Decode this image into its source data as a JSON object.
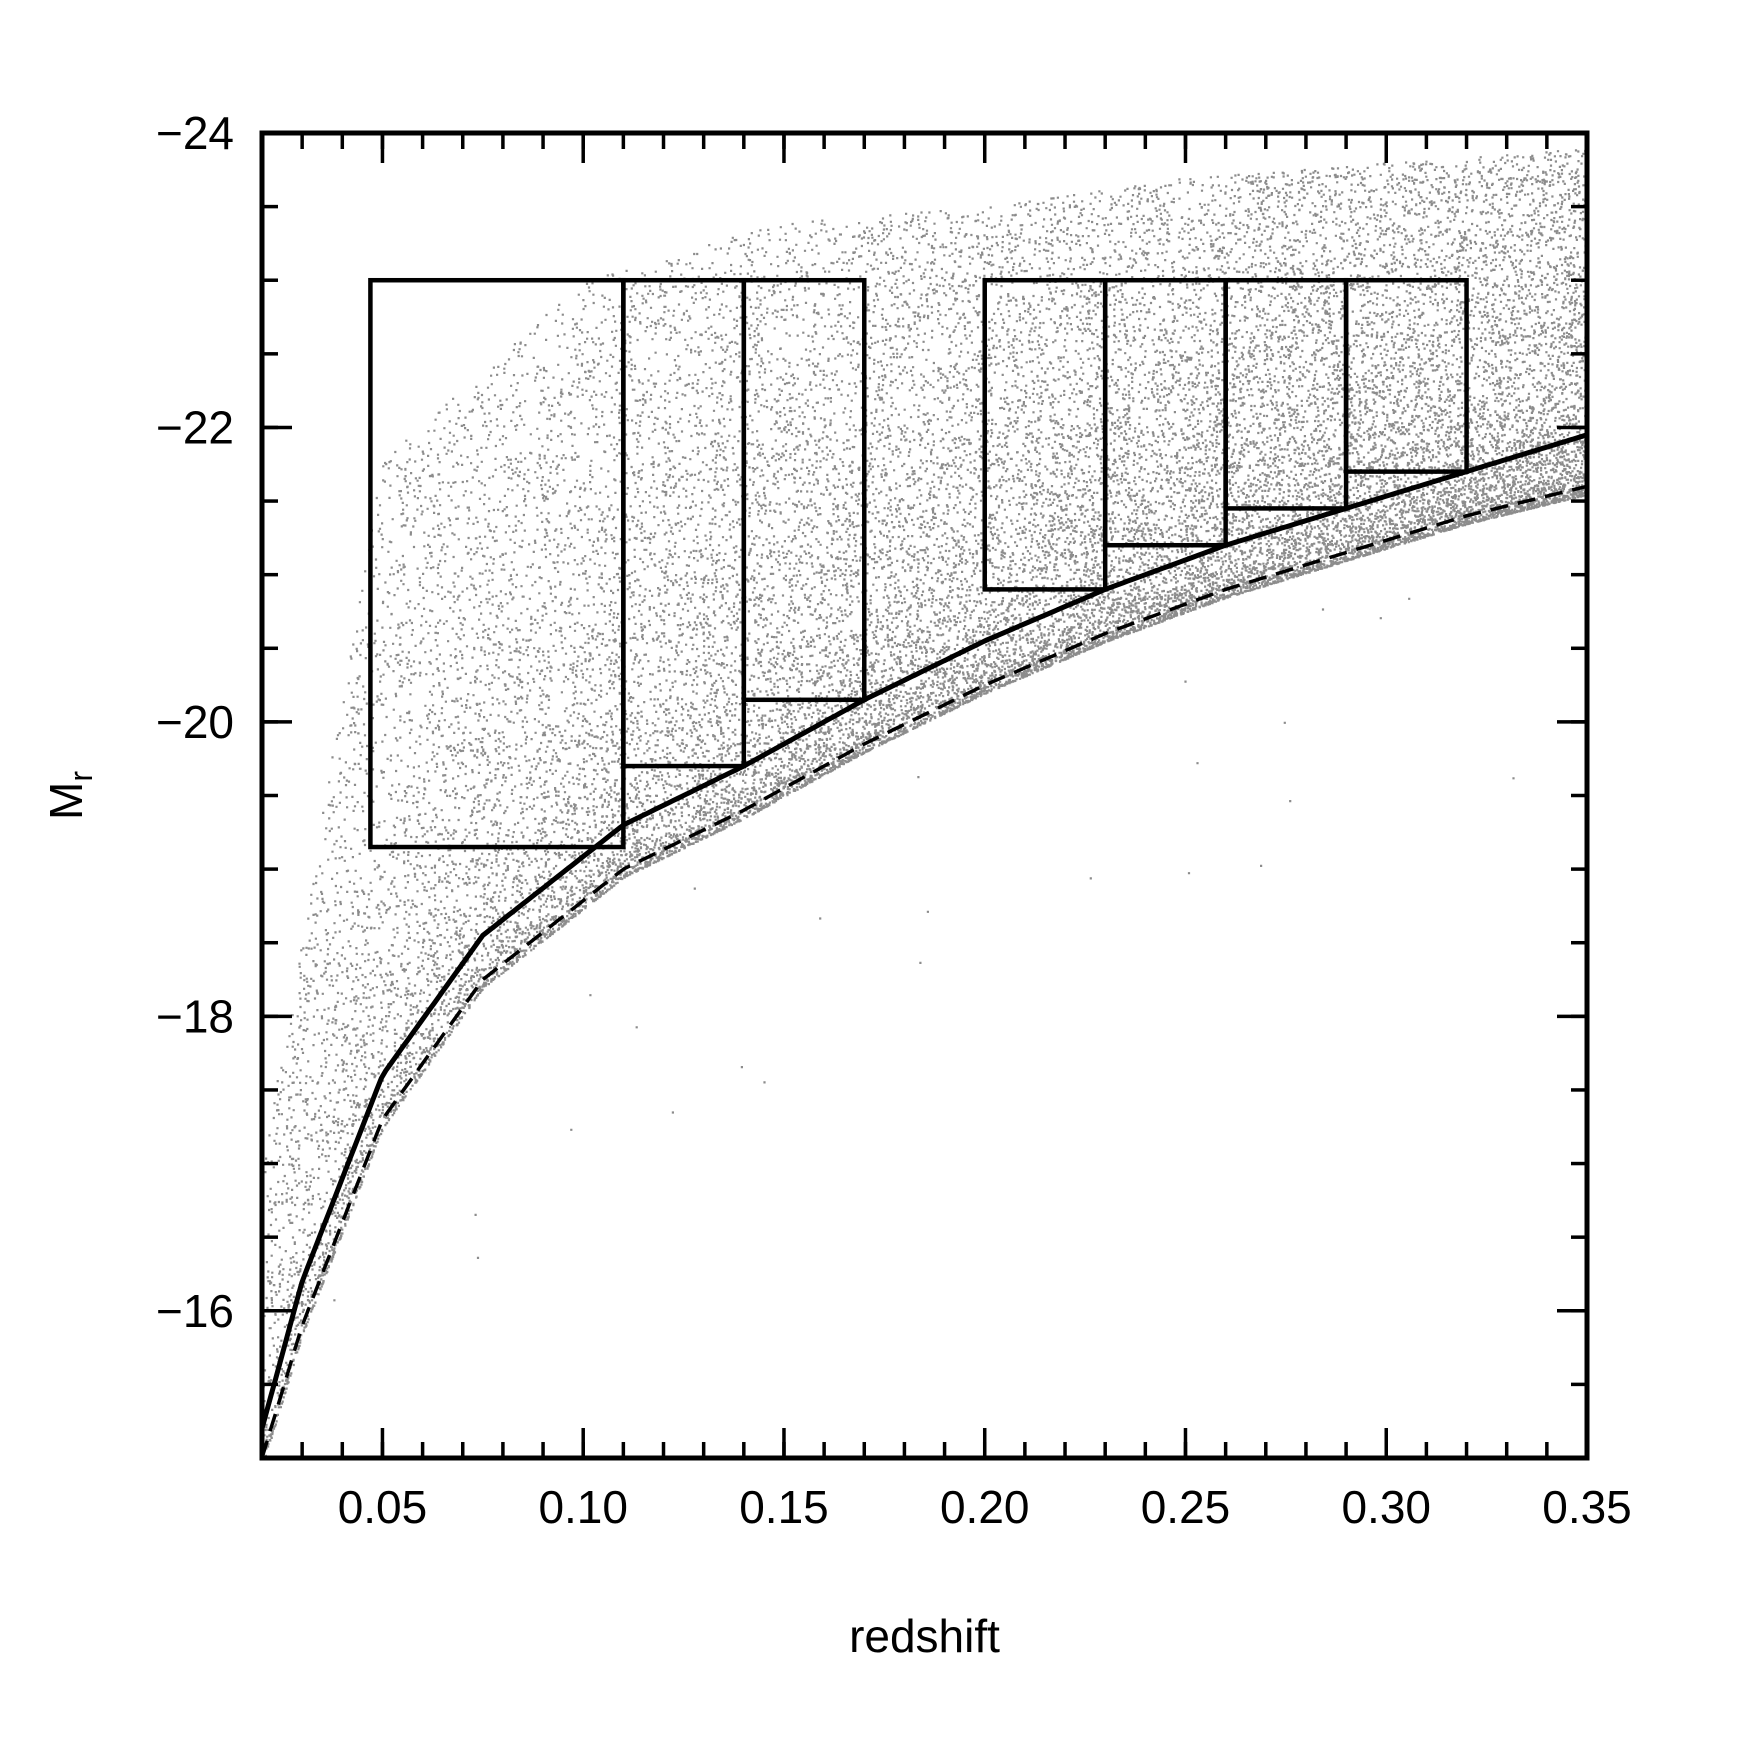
{
  "chart_data": {
    "type": "scatter",
    "title": "",
    "xlabel": "redshift",
    "ylabel": "M",
    "ylabel_subscript": "r",
    "xlim": [
      0.02,
      0.35
    ],
    "ylim": [
      -15.0,
      -24.0
    ],
    "y_inverted": true,
    "x_ticks": [
      0.05,
      0.1,
      0.15,
      0.2,
      0.25,
      0.3,
      0.35
    ],
    "x_tick_labels": [
      "0.05",
      "0.10",
      "0.15",
      "0.20",
      "0.25",
      "0.30",
      "0.35"
    ],
    "x_minor_step": 0.01,
    "y_ticks": [
      -24,
      -22,
      -20,
      -18,
      -16
    ],
    "y_tick_labels": [
      "−24",
      "−22",
      "−20",
      "−18",
      "−16"
    ],
    "y_minor_step": 0.5,
    "grid": false,
    "colors": {
      "points": "#8c8c8c",
      "lines": "#000000",
      "background": "#ffffff"
    },
    "series": [
      {
        "kind": "scatter-cloud",
        "description_points": "galaxy sample above flux limit",
        "envelope": {
          "x_range": [
            0.02,
            0.35
          ],
          "bright_limit_by_z": [
            [
              0.02,
              -17.0
            ],
            [
              0.05,
              -21.8
            ],
            [
              0.1,
              -23.0
            ],
            [
              0.15,
              -23.4
            ],
            [
              0.2,
              -23.5
            ],
            [
              0.25,
              -23.7
            ],
            [
              0.3,
              -23.8
            ],
            [
              0.35,
              -23.9
            ]
          ]
        }
      },
      {
        "kind": "line",
        "style": "solid",
        "points": [
          [
            0.02,
            -15.2
          ],
          [
            0.03,
            -16.2
          ],
          [
            0.05,
            -17.6
          ],
          [
            0.075,
            -18.55
          ],
          [
            0.11,
            -19.3
          ],
          [
            0.14,
            -19.7
          ],
          [
            0.17,
            -20.15
          ],
          [
            0.2,
            -20.55
          ],
          [
            0.23,
            -20.9
          ],
          [
            0.26,
            -21.2
          ],
          [
            0.29,
            -21.45
          ],
          [
            0.32,
            -21.7
          ],
          [
            0.35,
            -21.95
          ]
        ]
      },
      {
        "kind": "line",
        "style": "dashed",
        "points": [
          [
            0.02,
            -15.0
          ],
          [
            0.03,
            -15.9
          ],
          [
            0.05,
            -17.3
          ],
          [
            0.075,
            -18.25
          ],
          [
            0.11,
            -19.0
          ],
          [
            0.14,
            -19.4
          ],
          [
            0.17,
            -19.85
          ],
          [
            0.2,
            -20.25
          ],
          [
            0.23,
            -20.6
          ],
          [
            0.26,
            -20.9
          ],
          [
            0.29,
            -21.15
          ],
          [
            0.32,
            -21.4
          ],
          [
            0.35,
            -21.6
          ]
        ]
      }
    ],
    "boxes": [
      {
        "x": [
          0.047,
          0.11
        ],
        "y": [
          -19.15,
          -23.0
        ]
      },
      {
        "x": [
          0.11,
          0.14
        ],
        "y": [
          -19.7,
          -23.0
        ]
      },
      {
        "x": [
          0.14,
          0.17
        ],
        "y": [
          -20.15,
          -23.0
        ]
      },
      {
        "x": [
          0.2,
          0.23
        ],
        "y": [
          -20.9,
          -23.0
        ]
      },
      {
        "x": [
          0.23,
          0.26
        ],
        "y": [
          -21.2,
          -23.0
        ]
      },
      {
        "x": [
          0.26,
          0.29
        ],
        "y": [
          -21.45,
          -23.0
        ]
      },
      {
        "x": [
          0.29,
          0.32
        ],
        "y": [
          -21.7,
          -23.0
        ]
      }
    ]
  }
}
